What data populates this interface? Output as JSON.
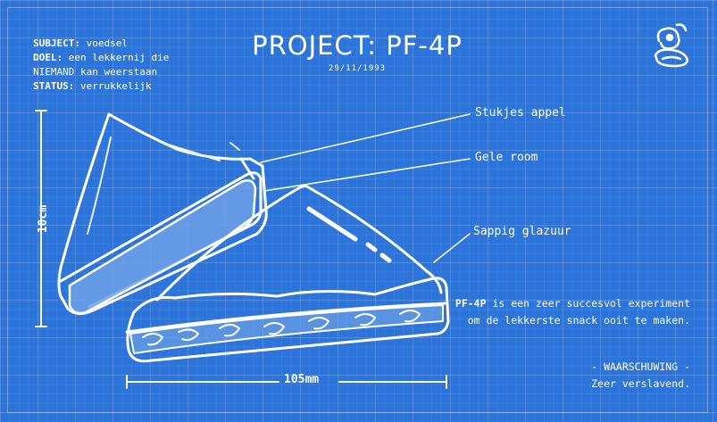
{
  "specs": [
    {
      "key": "SUBJECT:",
      "value": " voedsel"
    },
    {
      "key": "DOEL:",
      "value": " een lekkernij die"
    },
    {
      "key": "",
      "value": "NIEMAND kan weerstaan"
    },
    {
      "key": "STATUS:",
      "value": " verrukkelijk"
    }
  ],
  "title": "PROJECT: PF-4P",
  "date": "29/11/1993",
  "callouts": [
    "Stukjes appel",
    "Gele room",
    "Sappig glazuur"
  ],
  "description": {
    "lead": "PF-4P",
    "rest": " is een zeer succesvol experiment om de lekkerste snack ooit te maken."
  },
  "warning": {
    "title": "- WAARSCHUWING -",
    "body": "Zeer verslavend."
  },
  "dimensions": {
    "height": "10cm",
    "width": "105mm"
  },
  "colors": {
    "background": "#2c74d9",
    "ink": "#ffffff",
    "filling": "#6ea0e6"
  }
}
